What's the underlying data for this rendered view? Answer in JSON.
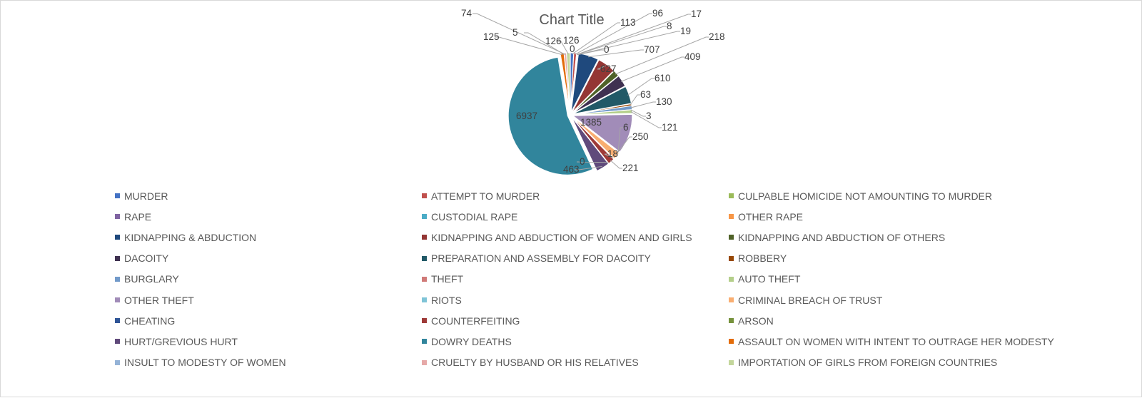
{
  "chart_data": {
    "type": "pie",
    "title": "Chart Title",
    "legend_position": "bottom",
    "categories": [
      "MURDER",
      "ATTEMPT TO MURDER",
      "CULPABLE HOMICIDE NOT AMOUNTING TO MURDER",
      "RAPE",
      "CUSTODIAL RAPE",
      "OTHER RAPE",
      "KIDNAPPING & ABDUCTION",
      "KIDNAPPING AND ABDUCTION OF WOMEN AND GIRLS",
      "KIDNAPPING AND ABDUCTION OF OTHERS",
      "DACOITY",
      "PREPARATION AND ASSEMBLY FOR DACOITY",
      "ROBBERY",
      "BURGLARY",
      "THEFT",
      "AUTO THEFT",
      "OTHER THEFT",
      "RIOTS",
      "CRIMINAL BREACH OF TRUST",
      "CHEATING",
      "COUNTERFEITING",
      "ARSON",
      "HURT/GREVIOUS HURT",
      "DOWRY DEATHS",
      "ASSAULT ON WOMEN WITH INTENT TO OUTRAGE HER MODESTY",
      "INSULT TO MODESTY OF WOMEN",
      "CRUELTY BY HUSBAND OR HIS RELATIVES",
      "IMPORTATION OF GIRLS FROM FOREIGN COUNTRIES"
    ],
    "values": [
      113,
      96,
      17,
      8,
      19,
      0,
      707,
      627,
      218,
      409,
      610,
      63,
      130,
      3,
      121,
      1385,
      6,
      250,
      18,
      221,
      0,
      463,
      6937,
      125,
      5,
      74,
      126
    ],
    "value_labels": [
      "113",
      "96",
      "17",
      "8",
      "19",
      "0",
      "707",
      "627",
      "218",
      "409",
      "610",
      "63",
      "130",
      "3",
      "121",
      "1385",
      "6",
      "250",
      "18",
      "221",
      "0",
      "463",
      "6937",
      "125",
      "5",
      "74",
      "126"
    ],
    "extra_labels": [
      "126",
      "0"
    ],
    "colors": [
      "#4472c4",
      "#c0504d",
      "#9bbb59",
      "#8064a2",
      "#4bacc6",
      "#f79646",
      "#1f497d",
      "#943634",
      "#4f6228",
      "#3f3151",
      "#215967",
      "#974806",
      "#729aca",
      "#d07a78",
      "#b4cf8a",
      "#a18cb8",
      "#7fc4d7",
      "#f9ae71",
      "#2f5597",
      "#9e3a38",
      "#76923c",
      "#604a7b",
      "#31859c",
      "#e36c09",
      "#95b3d7",
      "#e6a9a8",
      "#c3d69b"
    ]
  }
}
